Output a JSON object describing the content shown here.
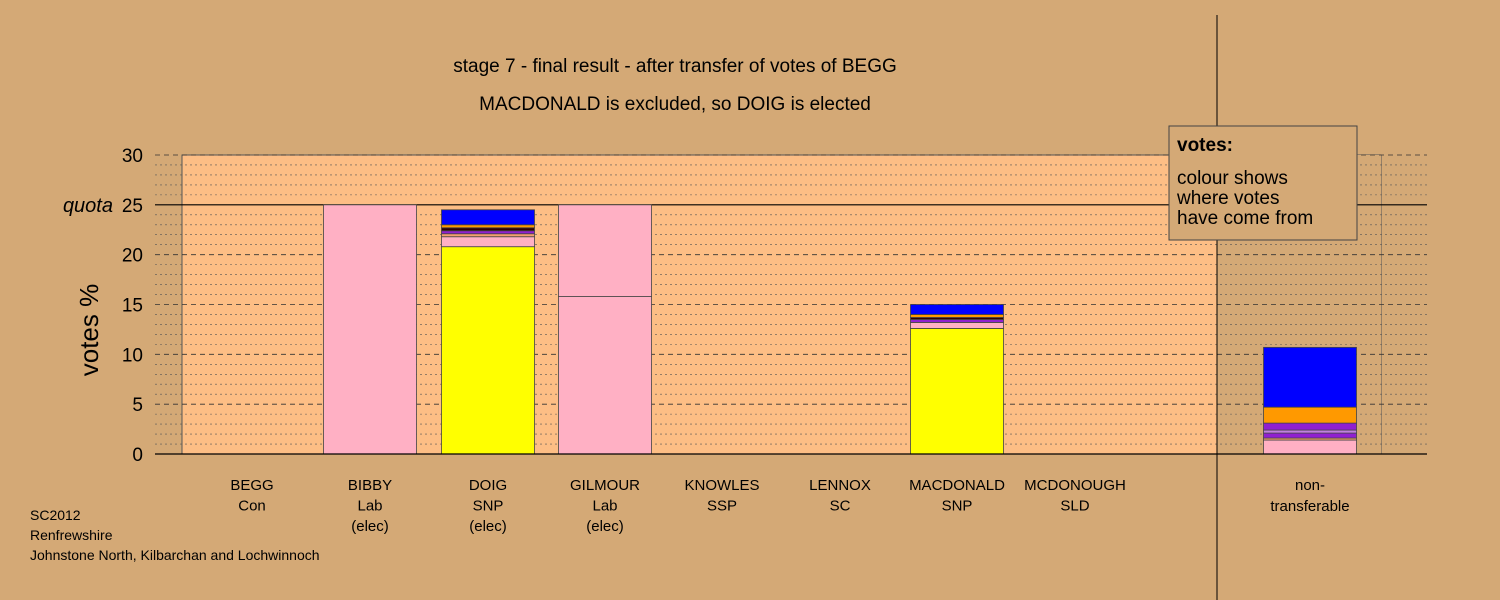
{
  "chart_data": {
    "type": "bar",
    "title": "stage 7 - final result - after transfer of votes of BEGG",
    "subtitle": "MACDONALD is excluded, so DOIG is elected",
    "ylabel": "votes %",
    "ylim": [
      0,
      30
    ],
    "yticks": [
      0,
      5,
      10,
      15,
      20,
      25,
      30
    ],
    "quota": 25,
    "quota_label": "quota",
    "grid": true,
    "candidates": [
      {
        "name": "BEGG",
        "party": "Con",
        "status": "",
        "segments": []
      },
      {
        "name": "BIBBY",
        "party": "Lab",
        "status": "(elec)",
        "segments": [
          {
            "color": "#ffb0c4",
            "value": 25.0
          }
        ]
      },
      {
        "name": "DOIG",
        "party": "SNP",
        "status": "(elec)",
        "segments": [
          {
            "color": "#ffff00",
            "value": 20.8
          },
          {
            "color": "#ffb0c4",
            "value": 1.0
          },
          {
            "color": "#f5a070",
            "value": 0.3
          },
          {
            "color": "#9020d0",
            "value": 0.3
          },
          {
            "color": "#300000",
            "value": 0.3
          },
          {
            "color": "#ff9900",
            "value": 0.3
          },
          {
            "color": "#0000ff",
            "value": 1.5
          }
        ]
      },
      {
        "name": "GILMOUR",
        "party": "Lab",
        "status": "(elec)",
        "segments": [
          {
            "color": "#ffb0c4",
            "value": 15.8
          },
          {
            "color": "#ffb0c4",
            "value": 9.2
          }
        ]
      },
      {
        "name": "KNOWLES",
        "party": "SSP",
        "status": "",
        "segments": []
      },
      {
        "name": "LENNOX",
        "party": "SC",
        "status": "",
        "segments": []
      },
      {
        "name": "MACDONALD",
        "party": "SNP",
        "status": "",
        "segments": [
          {
            "color": "#ffff00",
            "value": 12.6
          },
          {
            "color": "#ffb0c4",
            "value": 0.6
          },
          {
            "color": "#9020d0",
            "value": 0.3
          },
          {
            "color": "#300000",
            "value": 0.2
          },
          {
            "color": "#ff9900",
            "value": 0.3
          },
          {
            "color": "#0000ff",
            "value": 1.0
          }
        ]
      },
      {
        "name": "MCDONOUGH",
        "party": "SLD",
        "status": "",
        "segments": []
      }
    ],
    "nontransferable": {
      "label_line1": "non-",
      "label_line2": "transferable",
      "segments": [
        {
          "color": "#ffb0c4",
          "value": 1.4
        },
        {
          "color": "#f5a070",
          "value": 0.2
        },
        {
          "color": "#9020d0",
          "value": 0.5
        },
        {
          "color": "#c080e0",
          "value": 0.3
        },
        {
          "color": "#9020d0",
          "value": 0.7
        },
        {
          "color": "#ff9900",
          "value": 1.6
        },
        {
          "color": "#0000ff",
          "value": 6.0
        }
      ]
    },
    "legend": {
      "heading": "votes:",
      "line1": "colour shows",
      "line2": "where votes",
      "line3": "have come from"
    }
  },
  "footer": {
    "line1": "SC2012",
    "line2": "Renfrewshire",
    "line3": "Johnstone North, Kilbarchan and Lochwinnoch"
  },
  "colors": {
    "background": "#d4a976",
    "plot_area": "#fdbe85"
  }
}
